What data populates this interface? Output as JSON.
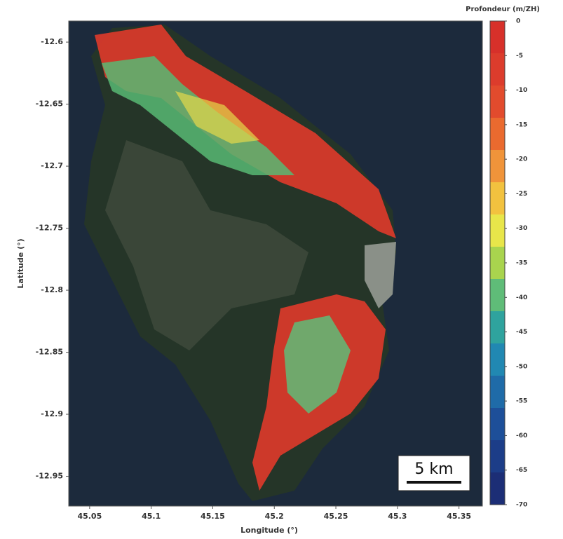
{
  "map": {
    "xlabel": "Longitude (°)",
    "ylabel": "Latitude (°)",
    "xlim": [
      45.033,
      45.369
    ],
    "ylim": [
      -12.974,
      -12.583
    ],
    "xticks": [
      45.05,
      45.1,
      45.15,
      45.2,
      45.25,
      45.3,
      45.35
    ],
    "yticks": [
      -12.6,
      -12.65,
      -12.7,
      -12.75,
      -12.8,
      -12.85,
      -12.9,
      -12.95
    ],
    "scale_bar": "5 km"
  },
  "colorbar": {
    "label": "Profondeur (m/ZH)",
    "lim": [
      -70,
      0
    ],
    "ticks": [
      0,
      -5,
      -10,
      -15,
      -20,
      -25,
      -30,
      -35,
      -40,
      -45,
      -50,
      -55,
      -60,
      -65,
      -70
    ],
    "colors": [
      "#d7302a",
      "#dc3c2c",
      "#e24b2d",
      "#ea6a2f",
      "#f0943a",
      "#f2c23f",
      "#e8e64a",
      "#a9d44e",
      "#5fbc78",
      "#2fa39e",
      "#2188b2",
      "#1f6ba8",
      "#1d4f99",
      "#1c3d88",
      "#1c2e76"
    ]
  }
}
